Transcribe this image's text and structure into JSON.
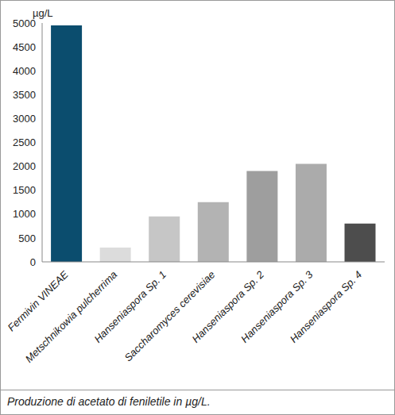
{
  "chart_data": {
    "type": "bar",
    "y_label": "µg/L",
    "caption": "Produzione di acetato di feniletile in µg/L.",
    "categories": [
      "Fermivin VINEAE",
      "Metschnikowia pulcherrima",
      "Hanseniaspora Sp. 1",
      "Saccharomyces cerevisiae",
      "Hanseniaspora Sp. 2",
      "Hanseniaspora Sp. 3",
      "Hanseniaspora Sp. 4"
    ],
    "values": [
      4950,
      300,
      950,
      1250,
      1900,
      2050,
      800
    ],
    "colors": [
      "#0b4d6e",
      "#dcdcdc",
      "#c6c6c6",
      "#b3b3b3",
      "#9e9e9e",
      "#ababab",
      "#4d4d4d"
    ],
    "ylim": [
      0,
      5000
    ],
    "yticks": [
      0,
      500,
      1000,
      1500,
      2000,
      2500,
      3000,
      3500,
      4000,
      4500,
      5000
    ],
    "grid": false
  }
}
